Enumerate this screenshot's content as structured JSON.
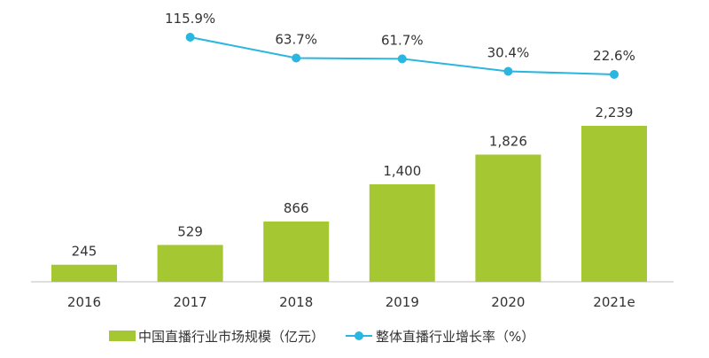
{
  "chart_data": {
    "type": "bar+line",
    "categories": [
      "2016",
      "2017",
      "2018",
      "2019",
      "2020",
      "2021e"
    ],
    "series": [
      {
        "name": "中国直播行业市场规模（亿元）",
        "type": "bar",
        "values": [
          245,
          529,
          866,
          1400,
          1826,
          2239
        ],
        "labels": [
          "245",
          "529",
          "866",
          "1,400",
          "1,826",
          "2,239"
        ],
        "color": "#a5c832"
      },
      {
        "name": "整体直播行业增长率（%）",
        "type": "line",
        "values": [
          null,
          115.9,
          63.7,
          61.7,
          30.4,
          22.6
        ],
        "labels": [
          "",
          "115.9%",
          "63.7%",
          "61.7%",
          "30.4%",
          "22.6%"
        ],
        "color": "#29b6e0"
      }
    ],
    "legend_position": "bottom",
    "grid": false
  }
}
